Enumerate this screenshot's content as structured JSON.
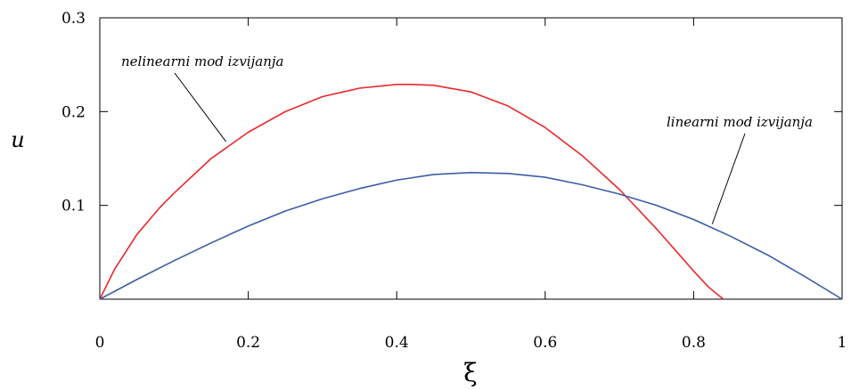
{
  "chart_data": {
    "type": "line",
    "xlabel": "ξ",
    "ylabel": "u",
    "xlim": [
      0,
      1
    ],
    "ylim": [
      0,
      0.3
    ],
    "x_ticks": [
      0,
      0.2,
      0.4,
      0.6,
      0.8,
      1
    ],
    "x_tick_labels": [
      "0",
      "0.2",
      "0.4",
      "0.6",
      "0.8",
      "1"
    ],
    "y_ticks": [
      0.1,
      0.2,
      0.3
    ],
    "y_tick_labels": [
      "0.1",
      "0.2",
      "0.3"
    ],
    "grid": false,
    "series": [
      {
        "color": "#e8282c",
        "x": [
          0,
          0.02,
          0.05,
          0.08,
          0.1,
          0.15,
          0.2,
          0.25,
          0.3,
          0.35,
          0.4,
          0.42,
          0.45,
          0.5,
          0.55,
          0.6,
          0.65,
          0.7,
          0.75,
          0.78,
          0.8,
          0.82,
          0.84
        ],
        "values": [
          0,
          0.032,
          0.069,
          0.097,
          0.113,
          0.15,
          0.178,
          0.2,
          0.216,
          0.225,
          0.229,
          0.229,
          0.228,
          0.221,
          0.206,
          0.183,
          0.153,
          0.117,
          0.075,
          0.048,
          0.03,
          0.013,
          0
        ]
      },
      {
        "color": "#3a5da8",
        "x": [
          0,
          0.05,
          0.1,
          0.15,
          0.2,
          0.25,
          0.3,
          0.35,
          0.4,
          0.45,
          0.5,
          0.55,
          0.6,
          0.65,
          0.7,
          0.75,
          0.8,
          0.85,
          0.9,
          0.95,
          1
        ],
        "values": [
          0,
          0.021,
          0.041,
          0.06,
          0.078,
          0.094,
          0.107,
          0.118,
          0.127,
          0.133,
          0.135,
          0.134,
          0.13,
          0.122,
          0.112,
          0.1,
          0.085,
          0.067,
          0.047,
          0.024,
          0
        ]
      }
    ],
    "annotations": [
      {
        "text": "nelinearni mod izvijanja",
        "target_series": 0,
        "x": 0.17,
        "y": 0.168
      },
      {
        "text": "linearni mod izvijanja",
        "target_series": 1,
        "x": 0.825,
        "y": 0.08
      }
    ]
  }
}
